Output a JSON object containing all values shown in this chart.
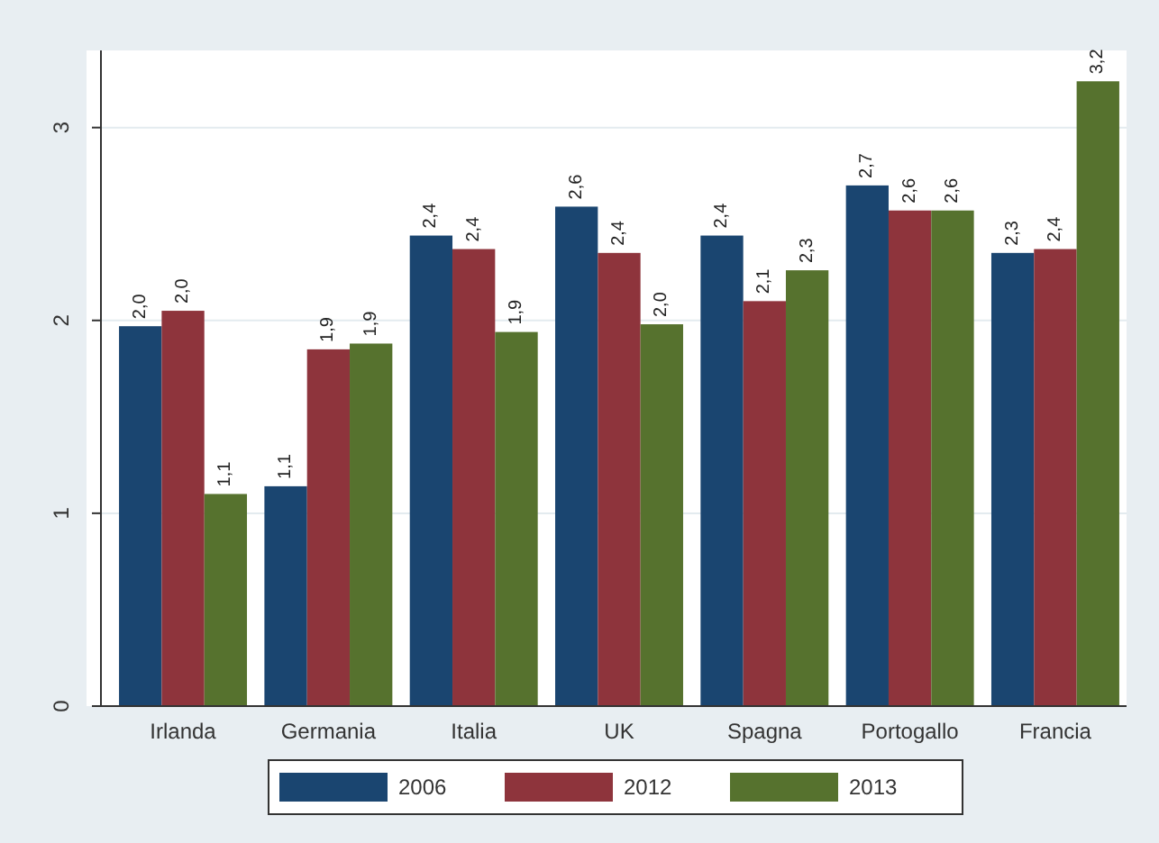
{
  "chart_data": {
    "type": "bar",
    "categories": [
      "Irlanda",
      "Germania",
      "Italia",
      "UK",
      "Spagna",
      "Portogallo",
      "Francia"
    ],
    "series": [
      {
        "name": "2006",
        "color": "#1a4570",
        "values": [
          1.97,
          1.14,
          2.44,
          2.59,
          2.44,
          2.7,
          2.35
        ],
        "value_labels": [
          "2,0",
          "1,1",
          "2,4",
          "2,6",
          "2,4",
          "2,7",
          "2,3"
        ]
      },
      {
        "name": "2012",
        "color": "#8e343c",
        "values": [
          2.05,
          1.85,
          2.37,
          2.35,
          2.1,
          2.57,
          2.37
        ],
        "value_labels": [
          "2,0",
          "1,9",
          "2,4",
          "2,4",
          "2,1",
          "2,6",
          "2,4"
        ]
      },
      {
        "name": "2013",
        "color": "#56722e",
        "values": [
          1.1,
          1.88,
          1.94,
          1.98,
          2.26,
          2.57,
          3.24
        ],
        "value_labels": [
          "1,1",
          "1,9",
          "1,9",
          "2,0",
          "2,3",
          "2,6",
          "3,2"
        ]
      }
    ],
    "ylim": [
      0,
      3.4
    ],
    "yticks": [
      0,
      1,
      2,
      3
    ],
    "grid": "y",
    "legend": "bottom"
  }
}
